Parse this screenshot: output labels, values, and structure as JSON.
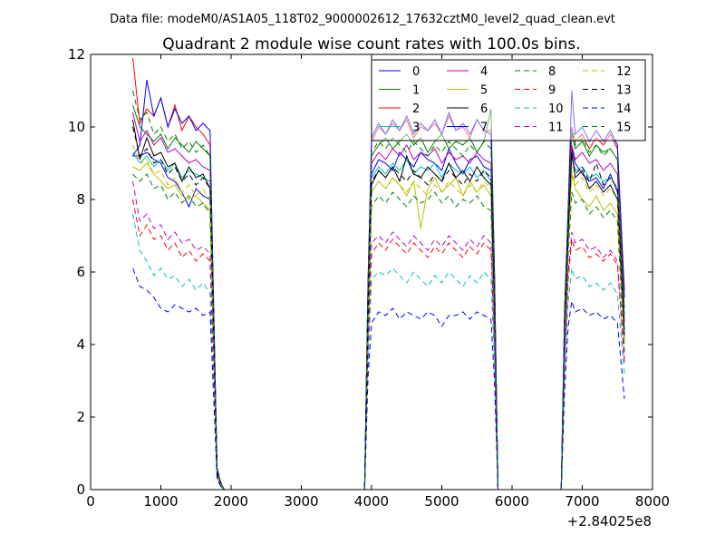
{
  "header": {
    "data_file": "Data file: modeM0/AS1A05_118T02_9000002612_17632cztM0_level2_quad_clean.evt"
  },
  "chart_data": {
    "type": "line",
    "title": "Quadrant 2 module wise count rates with 100.0s bins.",
    "xlabel": "",
    "ylabel": "",
    "xlim": [
      0,
      8000
    ],
    "ylim": [
      0,
      12
    ],
    "x_ticks": [
      0,
      1000,
      2000,
      3000,
      4000,
      5000,
      6000,
      7000,
      8000
    ],
    "x_tick_labels": [
      "0",
      "1000",
      "2000",
      "3000",
      "4000",
      "5000",
      "6000",
      "7000",
      "8000"
    ],
    "y_ticks": [
      0,
      2,
      4,
      6,
      8,
      10,
      12
    ],
    "y_tick_labels": [
      "0",
      "2",
      "4",
      "6",
      "8",
      "10",
      "12"
    ],
    "x_offset_label": "+2.84025e8",
    "grid": false,
    "legend_position": "top-right",
    "legend_columns": 4,
    "x": [
      600,
      700,
      800,
      900,
      1000,
      1100,
      1200,
      1300,
      1400,
      1500,
      1600,
      1700,
      1800,
      1850,
      1900,
      2000,
      3000,
      3900,
      3950,
      4000,
      4100,
      4200,
      4300,
      4400,
      4500,
      4600,
      4700,
      4800,
      4900,
      5000,
      5100,
      5200,
      5300,
      5400,
      5500,
      5600,
      5700,
      5750,
      5800,
      5900,
      6000,
      6700,
      6750,
      6800,
      6850,
      6900,
      7000,
      7100,
      7200,
      7300,
      7400,
      7500,
      7600
    ],
    "series": [
      {
        "name": "0",
        "color": "#0000ff",
        "dash": "solid",
        "values": [
          9.2,
          9.2,
          9.3,
          9.1,
          9.0,
          8.6,
          8.5,
          8.2,
          7.8,
          8.3,
          8.1,
          8.0,
          0.5,
          0.2,
          0,
          0,
          0,
          0,
          4.5,
          8.7,
          9.1,
          9.0,
          8.8,
          9.3,
          9.1,
          8.9,
          9.3,
          9.1,
          9.0,
          8.8,
          9.4,
          9.0,
          8.7,
          9.1,
          9.2,
          8.9,
          8.8,
          5.0,
          0,
          0,
          0,
          0,
          4.0,
          7.0,
          9.4,
          9.0,
          8.7,
          8.5,
          8.6,
          8.3,
          8.7,
          8.2,
          4.2
        ]
      },
      {
        "name": "1",
        "color": "#008000",
        "dash": "solid",
        "values": [
          10.6,
          10.0,
          9.8,
          9.6,
          9.8,
          9.4,
          9.7,
          9.5,
          9.3,
          9.6,
          9.4,
          9.2,
          0.6,
          0.2,
          0,
          0,
          0,
          0,
          5.5,
          9.2,
          9.5,
          9.7,
          9.4,
          9.6,
          9.8,
          9.5,
          9.7,
          9.3,
          9.6,
          9.8,
          9.4,
          9.6,
          9.5,
          9.7,
          9.3,
          9.6,
          10.5,
          6.0,
          0,
          0,
          0,
          0,
          5.0,
          7.5,
          9.8,
          9.4,
          9.6,
          9.2,
          9.5,
          9.3,
          9.4,
          9.1,
          5.0
        ]
      },
      {
        "name": "2",
        "color": "#ff0000",
        "dash": "solid",
        "values": [
          11.9,
          10.1,
          10.5,
          10.3,
          10.8,
          10.0,
          10.6,
          9.9,
          10.3,
          10.0,
          9.8,
          9.5,
          0.6,
          0.2,
          0,
          0,
          0,
          0,
          5.8,
          9.6,
          10.0,
          9.8,
          10.1,
          9.9,
          10.2,
          9.7,
          10.0,
          9.9,
          10.1,
          9.8,
          10.3,
          9.9,
          10.0,
          9.7,
          10.2,
          9.9,
          9.9,
          6.0,
          0,
          0,
          0,
          0,
          5.0,
          7.8,
          10.0,
          9.6,
          9.8,
          9.4,
          9.7,
          9.5,
          9.8,
          9.4,
          5.5
        ]
      },
      {
        "name": "3",
        "color": "#00bfbf",
        "dash": "solid",
        "values": [
          9.3,
          9.0,
          9.2,
          8.9,
          9.1,
          8.8,
          9.0,
          8.6,
          8.8,
          8.7,
          8.6,
          8.5,
          0.5,
          0.2,
          0,
          0,
          0,
          0,
          4.8,
          8.6,
          8.9,
          8.7,
          9.0,
          8.8,
          9.1,
          8.7,
          8.9,
          8.8,
          9.0,
          8.6,
          9.0,
          8.8,
          8.7,
          8.9,
          8.6,
          8.8,
          8.5,
          5.0,
          0,
          0,
          0,
          0,
          4.5,
          7.0,
          9.2,
          8.8,
          8.9,
          8.6,
          8.7,
          8.5,
          8.6,
          8.3,
          4.4
        ]
      },
      {
        "name": "4",
        "color": "#bf00bf",
        "dash": "solid",
        "values": [
          10.4,
          9.6,
          9.9,
          9.5,
          9.7,
          9.3,
          9.4,
          9.2,
          9.0,
          9.1,
          8.9,
          8.8,
          0.5,
          0.2,
          0,
          0,
          0,
          0,
          5.0,
          9.0,
          9.3,
          9.1,
          9.4,
          9.2,
          9.5,
          9.1,
          9.3,
          9.2,
          9.4,
          9.0,
          9.3,
          9.1,
          9.2,
          9.0,
          9.3,
          9.1,
          9.0,
          5.5,
          0,
          0,
          0,
          0,
          4.8,
          7.2,
          9.5,
          9.1,
          9.3,
          9.0,
          9.1,
          8.8,
          9.0,
          8.7,
          4.6
        ]
      },
      {
        "name": "5",
        "color": "#bfbf00",
        "dash": "solid",
        "values": [
          8.9,
          8.8,
          9.0,
          8.7,
          8.5,
          8.3,
          8.4,
          8.1,
          8.0,
          8.1,
          7.9,
          7.7,
          0.5,
          0.2,
          0,
          0,
          0,
          0,
          4.3,
          8.2,
          8.5,
          8.3,
          8.6,
          8.4,
          8.1,
          8.5,
          7.2,
          8.3,
          8.6,
          8.2,
          8.4,
          8.6,
          8.1,
          8.5,
          8.2,
          8.4,
          8.1,
          4.8,
          0,
          0,
          0,
          0,
          4.2,
          6.8,
          8.7,
          8.3,
          8.0,
          7.8,
          8.1,
          7.7,
          7.9,
          7.6,
          4.0
        ]
      },
      {
        "name": "6",
        "color": "#000000",
        "dash": "solid",
        "values": [
          10.2,
          9.1,
          9.7,
          9.2,
          9.3,
          8.9,
          9.0,
          8.5,
          8.9,
          8.6,
          8.7,
          8.3,
          0.5,
          0.2,
          0,
          0,
          0,
          0,
          4.8,
          8.4,
          8.8,
          8.6,
          8.9,
          8.5,
          9.2,
          8.7,
          8.6,
          8.9,
          8.7,
          8.5,
          9.0,
          8.6,
          8.8,
          8.5,
          8.9,
          8.6,
          8.4,
          5.0,
          0,
          0,
          0,
          0,
          4.5,
          7.0,
          9.3,
          8.6,
          8.8,
          8.3,
          8.5,
          8.2,
          8.4,
          8.0,
          4.2
        ]
      },
      {
        "name": "7",
        "color": "#0000ff",
        "dash": "solid",
        "values": [
          9.2,
          9.5,
          11.3,
          10.3,
          10.8,
          10.0,
          10.5,
          10.1,
          10.3,
          9.9,
          10.1,
          9.9,
          0.6,
          0.2,
          0,
          0,
          0,
          0,
          5.7,
          9.7,
          10.1,
          9.8,
          10.2,
          9.9,
          10.3,
          9.8,
          10.1,
          9.9,
          10.2,
          9.8,
          10.4,
          9.9,
          10.1,
          9.8,
          10.2,
          9.9,
          9.8,
          6.0,
          0,
          0,
          0,
          0,
          5.0,
          7.8,
          11.0,
          9.8,
          10.0,
          9.6,
          9.9,
          9.6,
          9.9,
          9.5,
          5.3
        ]
      },
      {
        "name": "8",
        "color": "#008000",
        "dash": "dashed",
        "values": [
          8.7,
          8.5,
          8.7,
          8.3,
          8.4,
          8.0,
          8.2,
          7.9,
          8.1,
          7.8,
          7.9,
          7.6,
          0.4,
          0.1,
          0,
          0,
          0,
          0,
          4.0,
          7.8,
          8.1,
          7.9,
          8.2,
          8.0,
          7.8,
          8.1,
          7.9,
          8.0,
          8.2,
          7.9,
          8.1,
          7.8,
          8.0,
          7.9,
          8.1,
          7.8,
          7.7,
          4.5,
          0,
          0,
          0,
          0,
          4.0,
          6.5,
          8.2,
          7.9,
          8.0,
          7.6,
          7.8,
          7.5,
          7.7,
          7.4,
          3.8
        ]
      },
      {
        "name": "9",
        "color": "#ff0000",
        "dash": "dashed",
        "values": [
          8.0,
          7.0,
          7.3,
          6.9,
          7.0,
          6.6,
          6.8,
          6.4,
          6.6,
          6.3,
          6.5,
          6.3,
          0.4,
          0.1,
          0,
          0,
          0,
          0,
          3.8,
          6.5,
          6.8,
          6.6,
          6.9,
          6.7,
          6.5,
          6.8,
          6.6,
          6.4,
          6.7,
          6.5,
          6.8,
          6.6,
          6.4,
          6.7,
          6.5,
          6.8,
          6.6,
          4.0,
          0,
          0,
          0,
          0,
          3.5,
          5.8,
          6.9,
          6.6,
          6.7,
          6.4,
          6.5,
          6.3,
          6.5,
          6.2,
          3.5
        ]
      },
      {
        "name": "10",
        "color": "#00bfbf",
        "dash": "dashed",
        "values": [
          7.6,
          6.6,
          6.3,
          5.9,
          6.1,
          5.8,
          5.9,
          5.6,
          5.8,
          5.5,
          5.7,
          5.4,
          0.3,
          0.1,
          0,
          0,
          0,
          0,
          3.5,
          5.8,
          6.0,
          5.9,
          6.1,
          5.9,
          5.7,
          6.0,
          5.8,
          5.6,
          5.9,
          5.7,
          6.0,
          5.8,
          5.6,
          5.9,
          5.7,
          6.0,
          5.8,
          3.5,
          0,
          0,
          0,
          0,
          3.2,
          5.2,
          6.1,
          5.8,
          5.9,
          5.6,
          5.7,
          5.5,
          5.7,
          5.4,
          3.2
        ]
      },
      {
        "name": "11",
        "color": "#bf00bf",
        "dash": "dashed",
        "values": [
          8.5,
          7.4,
          7.6,
          7.2,
          7.3,
          6.9,
          7.1,
          6.8,
          6.9,
          6.6,
          6.7,
          6.5,
          0.4,
          0.1,
          0,
          0,
          0,
          0,
          3.9,
          6.8,
          7.0,
          6.8,
          7.1,
          6.9,
          6.7,
          7.0,
          6.8,
          6.6,
          6.9,
          6.7,
          7.0,
          6.8,
          6.6,
          6.9,
          6.7,
          7.0,
          6.8,
          4.0,
          0,
          0,
          0,
          0,
          3.6,
          6.0,
          7.1,
          6.8,
          6.9,
          6.6,
          6.7,
          6.4,
          6.6,
          6.3,
          3.6
        ]
      },
      {
        "name": "12",
        "color": "#bfbf00",
        "dash": "dashed",
        "values": [
          9.5,
          9.0,
          9.1,
          8.7,
          8.8,
          8.4,
          8.6,
          8.2,
          8.4,
          8.1,
          8.3,
          8.0,
          0.5,
          0.2,
          0,
          0,
          0,
          0,
          4.4,
          8.2,
          8.5,
          8.3,
          8.6,
          8.4,
          8.2,
          8.5,
          8.3,
          8.1,
          8.4,
          8.2,
          8.5,
          8.3,
          8.1,
          8.4,
          8.2,
          8.5,
          8.3,
          4.8,
          0,
          0,
          0,
          0,
          4.3,
          6.9,
          8.8,
          8.4,
          8.6,
          8.2,
          8.4,
          8.1,
          8.3,
          8.0,
          4.1
        ]
      },
      {
        "name": "13",
        "color": "#000000",
        "dash": "dashed",
        "values": [
          10.0,
          9.2,
          9.4,
          9.0,
          9.1,
          8.7,
          8.9,
          8.5,
          8.7,
          8.4,
          8.6,
          8.3,
          0.5,
          0.2,
          0,
          0,
          0,
          0,
          4.7,
          8.5,
          8.8,
          8.6,
          8.9,
          8.7,
          8.5,
          8.8,
          8.6,
          8.4,
          8.7,
          8.5,
          8.8,
          8.6,
          8.4,
          8.7,
          8.5,
          8.8,
          8.6,
          5.0,
          0,
          0,
          0,
          0,
          4.5,
          7.1,
          9.3,
          8.7,
          8.9,
          8.5,
          9.0,
          8.4,
          8.6,
          8.3,
          4.3
        ]
      },
      {
        "name": "14",
        "color": "#0000ff",
        "dash": "dashed",
        "values": [
          6.1,
          5.6,
          5.5,
          5.3,
          5.0,
          4.9,
          5.1,
          5.0,
          4.9,
          5.0,
          4.8,
          4.9,
          0.3,
          0.1,
          0,
          0,
          0,
          0,
          3.1,
          4.6,
          4.9,
          4.8,
          5.0,
          4.7,
          4.9,
          4.8,
          4.7,
          4.9,
          4.8,
          4.5,
          4.8,
          4.8,
          4.9,
          4.7,
          4.9,
          4.8,
          4.7,
          3.0,
          0,
          0,
          0,
          0,
          2.8,
          4.5,
          5.2,
          4.9,
          5.0,
          4.8,
          4.9,
          4.7,
          4.8,
          4.6,
          2.5
        ]
      },
      {
        "name": "15",
        "color": "#008000",
        "dash": "dashed",
        "values": [
          11.0,
          10.2,
          10.4,
          9.8,
          10.0,
          9.6,
          9.8,
          9.4,
          9.6,
          9.3,
          9.5,
          9.2,
          0.6,
          0.2,
          0,
          0,
          0,
          0,
          5.4,
          9.3,
          9.6,
          9.4,
          9.7,
          9.5,
          9.3,
          9.6,
          9.4,
          9.2,
          9.5,
          9.3,
          9.6,
          9.4,
          9.2,
          9.5,
          9.3,
          9.6,
          9.4,
          5.6,
          0,
          0,
          0,
          0,
          5.0,
          7.6,
          9.9,
          9.5,
          9.7,
          9.3,
          9.5,
          9.2,
          9.4,
          9.1,
          4.8
        ]
      }
    ]
  }
}
